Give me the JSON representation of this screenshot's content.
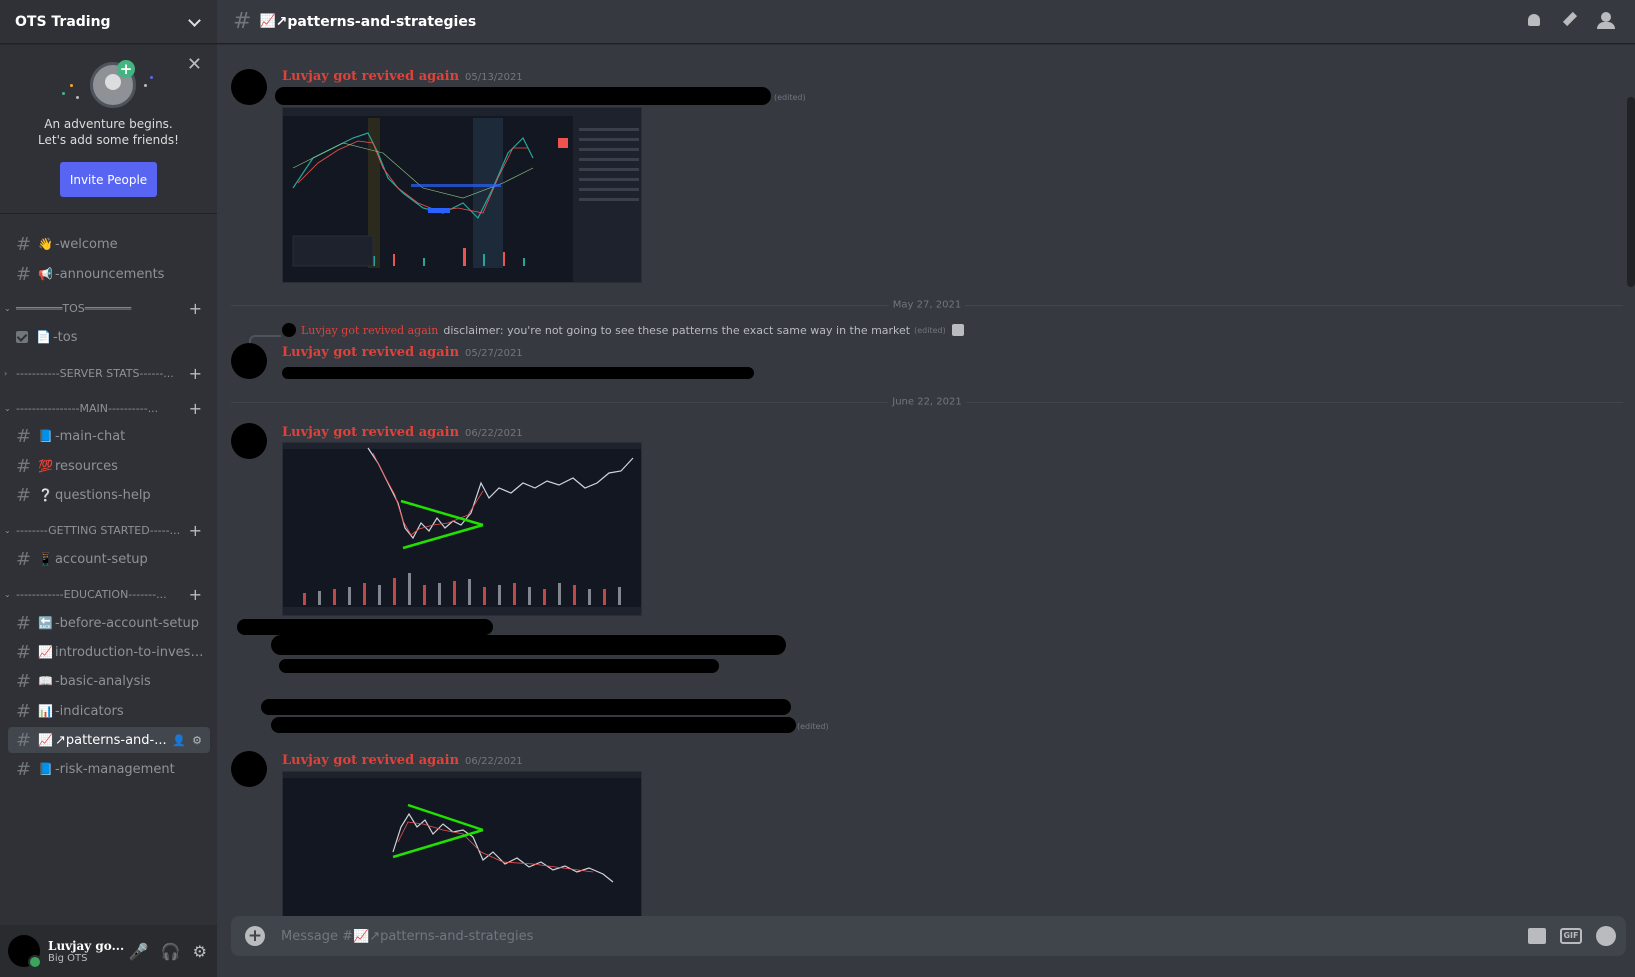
{
  "server": {
    "name": "OTS Trading"
  },
  "invite": {
    "line1": "An adventure begins.",
    "line2": "Let's add some friends!",
    "button": "Invite People"
  },
  "channels": [
    {
      "emoji": "👋",
      "label": "-welcome"
    },
    {
      "emoji": "📢",
      "label": "-announcements"
    },
    {
      "emoji": "📄",
      "label": "-tos"
    },
    {
      "emoji": "📘",
      "label": "-main-chat"
    },
    {
      "emoji": "💯",
      "label": "resources"
    },
    {
      "emoji": "❔",
      "label": "questions-help"
    },
    {
      "emoji": "📱",
      "label": "account-setup"
    },
    {
      "emoji": "🔙",
      "label": "-before-account-setup"
    },
    {
      "emoji": "📈",
      "label": "introduction-to-invest..."
    },
    {
      "emoji": "📖",
      "label": "-basic-analysis"
    },
    {
      "emoji": "📊",
      "label": "-indicators"
    },
    {
      "emoji": "📈",
      "label": "↗patterns-and-..."
    },
    {
      "emoji": "📘",
      "label": "-risk-management"
    }
  ],
  "categories": [
    {
      "label": "═══════TOS═══════"
    },
    {
      "label": "-----------SERVER STATS------..."
    },
    {
      "label": "----------------MAIN----------..."
    },
    {
      "label": "--------GETTING STARTED-----..."
    },
    {
      "label": "------------EDUCATION-------..."
    }
  ],
  "user": {
    "name": "Luvjay go...",
    "tag": "Big OTS"
  },
  "header": {
    "emoji": "📈",
    "title": "↗patterns-and-strategies"
  },
  "messages": [
    {
      "author": "Luvjay got revived again",
      "time": "05/13/2021",
      "edited": "(edited)"
    },
    {
      "author": "Luvjay got revived again",
      "time": "05/27/2021"
    },
    {
      "author": "Luvjay got revived again",
      "time": "06/22/2021",
      "edited": "(edited)"
    },
    {
      "author": "Luvjay got revived again",
      "time": "06/22/2021"
    }
  ],
  "reply": {
    "author": "Luvjay got revived again",
    "text": "disclaimer: you're not going to see these patterns the exact same way in the market",
    "edited": "(edited)"
  },
  "dividers": [
    "May 27, 2021",
    "June 22, 2021"
  ],
  "composer": {
    "placeholder": "Message #📈↗patterns-and-strategies"
  },
  "icons": {
    "top": [
      "bell-icon",
      "pin-icon",
      "members-icon"
    ],
    "composer": [
      "gift-icon",
      "gif-icon",
      "emoji-icon"
    ],
    "user": [
      "mute-icon",
      "headphones-icon",
      "settings-icon"
    ]
  },
  "colors": {
    "accent": "#5865f2",
    "author": "#e0423a",
    "online": "#3ba55d"
  }
}
